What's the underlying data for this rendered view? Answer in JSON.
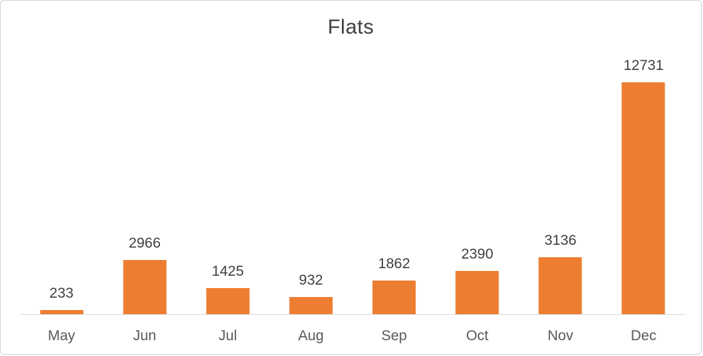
{
  "chart_data": {
    "type": "bar",
    "title": "Flats",
    "categories": [
      "May",
      "Jun",
      "Jul",
      "Aug",
      "Sep",
      "Oct",
      "Nov",
      "Dec"
    ],
    "values": [
      233,
      2966,
      1425,
      932,
      1862,
      2390,
      3136,
      12731
    ],
    "xlabel": "",
    "ylabel": "",
    "ylim": [
      0,
      12731
    ],
    "grid": false,
    "legend": false,
    "data_labels_shown": true,
    "bar_color": "#ED7D31",
    "title_color": "#404040",
    "data_label_color": "#404040",
    "axis_label_color": "#595959",
    "axis_line_color": "#d9d9d9"
  }
}
